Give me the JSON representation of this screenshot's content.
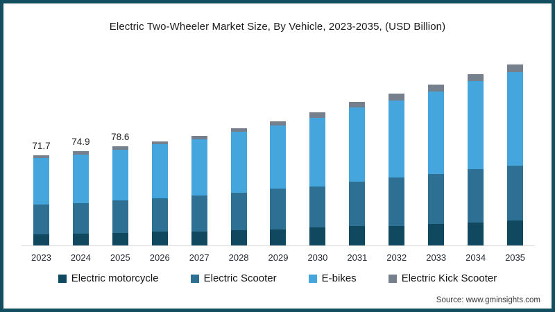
{
  "title": "Electric Two-Wheeler Market Size, By Vehicle, 2023-2035, (USD Billion)",
  "source": {
    "text": "Source: www.gminsights.com"
  },
  "colors": {
    "frame_border": "#124e60",
    "axis_line": "#dadada",
    "text": "#1c1c1c"
  },
  "chart_data": {
    "type": "bar",
    "stacked": true,
    "title": "Electric Two-Wheeler Market Size, By Vehicle, 2023-2035, (USD Billion)",
    "unit": "USD Billion",
    "grid": false,
    "legend_position": "bottom",
    "categories": [
      "2023",
      "2024",
      "2025",
      "2026",
      "2027",
      "2028",
      "2029",
      "2030",
      "2031",
      "2032",
      "2033",
      "2034",
      "2035"
    ],
    "series": [
      {
        "name": "Electric motorcycle",
        "color": "#10495f",
        "values": [
          8.9,
          9.4,
          10.1,
          10.9,
          11.0,
          12.0,
          12.9,
          14.2,
          15.3,
          15.6,
          17.1,
          18.2,
          19.7
        ]
      },
      {
        "name": "Electric Scooter",
        "color": "#2e7093",
        "values": [
          23.6,
          24.4,
          25.8,
          26.5,
          28.8,
          30.0,
          32.2,
          32.7,
          35.6,
          38.3,
          39.9,
          42.5,
          43.7
        ]
      },
      {
        "name": "E-bikes",
        "color": "#45a6dd",
        "values": [
          37.0,
          38.6,
          40.3,
          43.0,
          44.7,
          48.5,
          50.2,
          54.8,
          58.9,
          61.4,
          65.3,
          69.9,
          74.6
        ]
      },
      {
        "name": "Electric Kick Scooter",
        "color": "#75808c",
        "values": [
          2.2,
          2.5,
          2.4,
          2.4,
          2.8,
          2.8,
          3.5,
          4.0,
          4.2,
          5.5,
          5.8,
          5.7,
          5.9
        ]
      }
    ],
    "totals": [
      71.7,
      74.9,
      78.6,
      82.8,
      87.3,
      93.3,
      98.8,
      105.7,
      114.0,
      120.8,
      128.1,
      136.3,
      143.9
    ],
    "bar_labels": [
      "71.7",
      "74.9",
      "78.6",
      "",
      "",
      "",
      "",
      "",
      "",
      "",
      "",
      "",
      ""
    ]
  }
}
